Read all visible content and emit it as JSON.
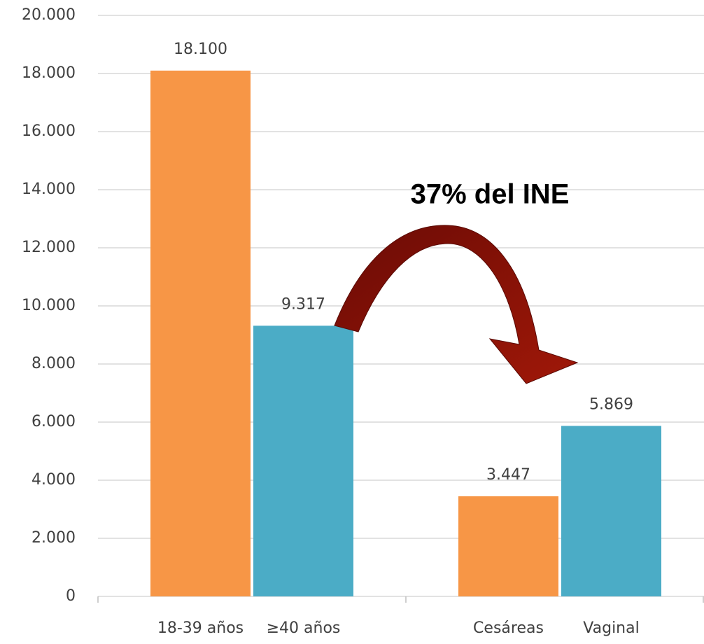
{
  "chart_data": {
    "type": "bar",
    "annotations": [
      "37% del INE"
    ],
    "categories": [
      "18-39 años",
      "≥40 años",
      "Cesáreas",
      "Vaginal"
    ],
    "values": [
      18100,
      9317,
      3447,
      5869
    ],
    "value_labels": [
      "18.100",
      "9.317",
      "3.447",
      "5.869"
    ],
    "colors": [
      "#f79646",
      "#4bacc6",
      "#f79646",
      "#4bacc6"
    ],
    "ylim": [
      0,
      20000
    ],
    "yticks": [
      0,
      {
        "value": 2000,
        "label": "2.000"
      },
      {
        "value": 4000,
        "label": "4.000"
      },
      {
        "value": 6000,
        "label": "6.000"
      },
      {
        "value": 8000,
        "label": "8.000"
      },
      {
        "value": 10000,
        "label": "10.000"
      },
      {
        "value": 12000,
        "label": "12.000"
      },
      {
        "value": 14000,
        "label": "14.000"
      },
      {
        "value": 16000,
        "label": "16.000"
      },
      {
        "value": 18000,
        "label": "18.000"
      },
      {
        "value": 20000,
        "label": "20.000"
      }
    ],
    "grid": true
  }
}
